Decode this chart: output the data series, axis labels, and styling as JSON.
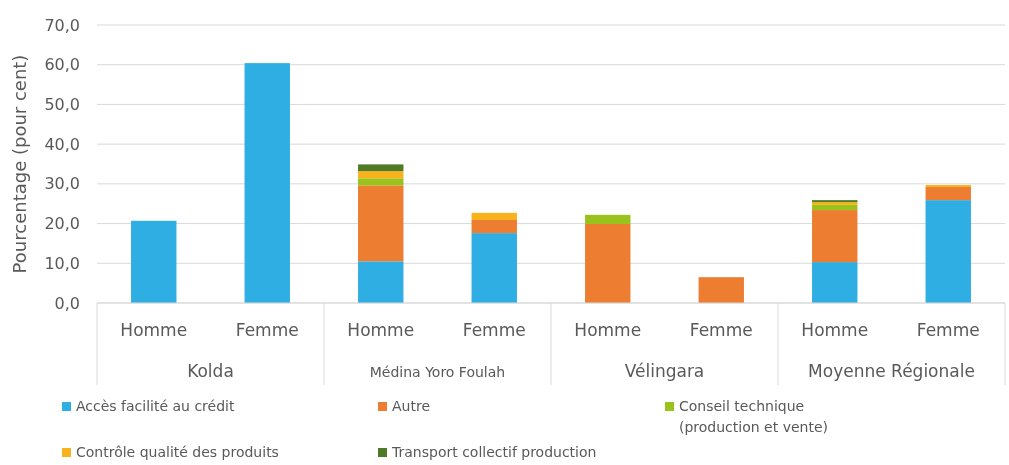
{
  "chart_data": {
    "type": "bar",
    "stacked": true,
    "ylabel": "Pourcentage (pour cent)",
    "categories": [
      "Homme",
      "Femme",
      "Homme",
      "Femme",
      "Homme",
      "Femme",
      "Homme",
      "Femme"
    ],
    "annotations": [
      "Kolda",
      "Médina Yoro Foulah",
      "Vélingara",
      "Moyenne Régionale"
    ],
    "series": [
      {
        "name": "Accès facilité au crédit",
        "color": "#2eaee3",
        "values": [
          20.7,
          60.4,
          10.5,
          17.6,
          0,
          0,
          10.3,
          25.9
        ]
      },
      {
        "name": "Autre",
        "color": "#ed7d31",
        "values": [
          0,
          0,
          19.1,
          3.3,
          19.9,
          6.5,
          13.1,
          3.3
        ]
      },
      {
        "name": "Conseil technique (production et vente)",
        "color": "#99c31c",
        "values": [
          0,
          0,
          1.8,
          0,
          2.3,
          0,
          1.3,
          0
        ]
      },
      {
        "name": "Contrôle qualité des produits",
        "color": "#f7b21e",
        "values": [
          0,
          0,
          1.8,
          1.8,
          0,
          0,
          0.7,
          0.5
        ]
      },
      {
        "name": "Transport collectif production",
        "color": "#4f7a28",
        "values": [
          0,
          0,
          1.7,
          0,
          0,
          0,
          0.5,
          0
        ]
      }
    ],
    "ylim": [
      0,
      70
    ],
    "yticks": [
      {
        "value": 0,
        "label": "0,0"
      },
      {
        "value": 10,
        "label": "10,0"
      },
      {
        "value": 20,
        "label": "20,0"
      },
      {
        "value": 30,
        "label": "30,0"
      },
      {
        "value": 40,
        "label": "40,0"
      },
      {
        "value": 50,
        "label": "50,0"
      },
      {
        "value": 60,
        "label": "60,0"
      },
      {
        "value": 70,
        "label": "70,0"
      }
    ],
    "grid": "y",
    "legend": "bottom"
  }
}
